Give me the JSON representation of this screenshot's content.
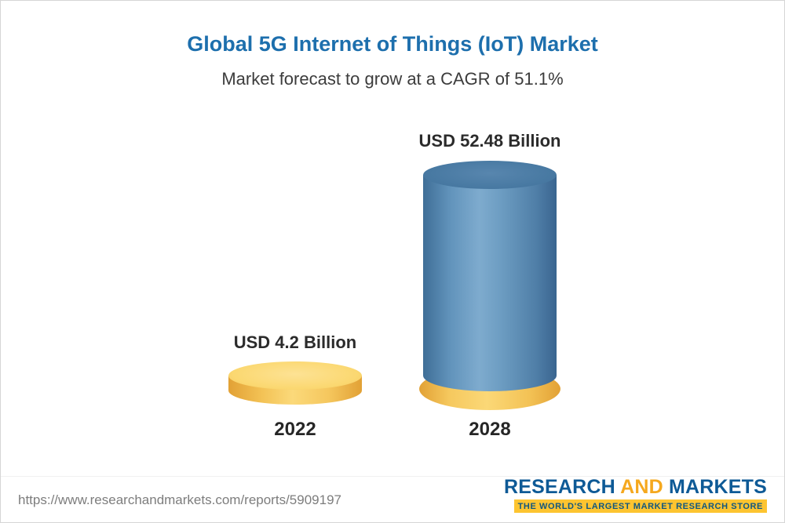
{
  "chart_data": {
    "type": "bar",
    "bar_style": "3d-cylinder",
    "title": "Global 5G Internet of Things (IoT) Market",
    "subtitle": "Market forecast to grow at a CAGR of 51.1%",
    "cagr_percent": 51.1,
    "categories": [
      "2022",
      "2028"
    ],
    "values": [
      4.2,
      52.48
    ],
    "unit": "USD Billion",
    "value_labels": [
      "USD 4.2 Billion",
      "USD 52.48 Billion"
    ],
    "bar_colors": [
      "#f8cf6a",
      "#5b89ae"
    ],
    "legend": false,
    "grid": false,
    "ylim": [
      0,
      55
    ]
  },
  "footer": {
    "url": "https://www.researchandmarkets.com/reports/5909197",
    "logo": {
      "part1": "RESEARCH",
      "part2": "AND",
      "part3": "MARKETS",
      "tagline": "THE WORLD'S LARGEST MARKET RESEARCH STORE"
    }
  },
  "colors": {
    "title_blue": "#1d6fad",
    "text_dark": "#2b2b2b",
    "bar_yellow": "#f8cf6a",
    "bar_blue": "#5b89ae",
    "url_gray": "#7d7d7d",
    "logo_blue": "#0e5a96",
    "logo_orange": "#f5a81e",
    "tagline_bg": "#fdc430"
  }
}
